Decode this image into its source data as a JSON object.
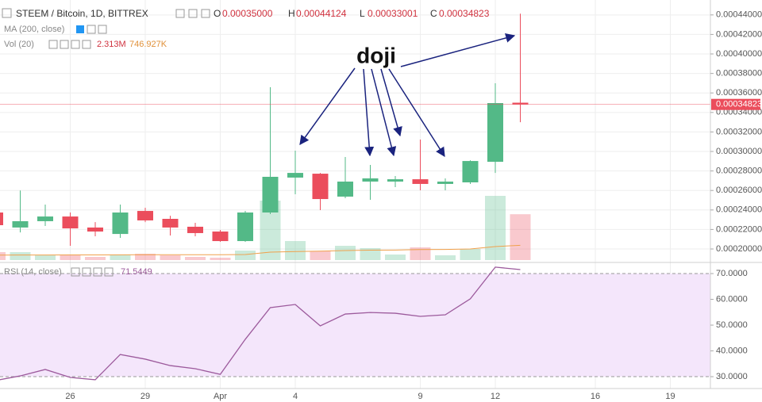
{
  "chart_data": {
    "type": "candlestick",
    "header": {
      "symbol": "STEEM / Bitcoin, 1D, BITTREX",
      "o_tag": "O",
      "o": "0.00035000",
      "h_tag": "H",
      "h": "0.00044124",
      "l_tag": "L",
      "l": "0.00033001",
      "c_tag": "C",
      "c": "0.00034823",
      "ma": "MA (200, close)",
      "vol": "Vol (20)",
      "vol_value": "2.313M",
      "vol_ma_value": "746.927K",
      "rsi": "RSI (14, close)",
      "rsi_value": "71.5449"
    },
    "categories": [
      null,
      null,
      null,
      "26",
      null,
      null,
      "29",
      null,
      null,
      "Apr",
      null,
      null,
      "4",
      null,
      null,
      null,
      null,
      "9",
      null,
      null,
      "12",
      null,
      null,
      null,
      "16",
      null,
      null,
      "19",
      null
    ],
    "open": [
      0.0002374,
      0.000222,
      0.0002285,
      0.0002333,
      0.000222,
      0.0002154,
      0.000239,
      0.0002309,
      0.0002228,
      0.0002179,
      0.0002081,
      0.0002374,
      0.0002732,
      0.0002772,
      0.0002537,
      0.0002691,
      0.0002691,
      0.0002715,
      0.0002667,
      0.0002683,
      0.0002894,
      0.00035,
      null,
      null,
      null,
      null,
      null,
      null,
      null
    ],
    "high": [
      0.0002398,
      0.00026,
      0.0002455,
      0.0002374,
      0.0002276,
      0.0002455,
      0.0002423,
      0.0002341,
      0.0002268,
      0.0002195,
      0.000239,
      0.0003659,
      0.0003008,
      0.000278,
      0.0002943,
      0.0002862,
      0.0002748,
      0.0003122,
      0.0002724,
      0.000291,
      0.0003699,
      0.00044124,
      null,
      null,
      null,
      null,
      null,
      null,
      null
    ],
    "low": [
      0.0002228,
      0.000217,
      0.0002236,
      0.0002033,
      0.000213,
      0.0002114,
      0.0002276,
      0.0002138,
      0.000213,
      0.0002073,
      0.0002073,
      0.0002358,
      0.0002561,
      0.0002398,
      0.000252,
      0.0002504,
      0.0002634,
      0.0002602,
      0.0002602,
      0.0002667,
      0.000278,
      0.00033001,
      null,
      null,
      null,
      null,
      null,
      null,
      null
    ],
    "close": [
      0.0002244,
      0.0002285,
      0.0002333,
      0.0002211,
      0.0002179,
      0.0002374,
      0.0002293,
      0.000222,
      0.0002163,
      0.0002081,
      0.0002374,
      0.000274,
      0.000278,
      0.0002512,
      0.0002691,
      0.0002724,
      0.0002715,
      0.0002667,
      0.0002691,
      0.0002902,
      0.0003496,
      0.00034823,
      null,
      null,
      null,
      null,
      null,
      null,
      null
    ],
    "volume": [
      400000,
      400000,
      240000,
      240000,
      160000,
      280000,
      320000,
      240000,
      160000,
      120000,
      480000,
      3000000,
      960000,
      440000,
      720000,
      600000,
      280000,
      640000,
      240000,
      560000,
      3240000,
      2313000,
      null,
      null,
      null,
      null,
      null,
      null,
      null
    ],
    "volume_ma": [
      250000,
      255000,
      255000,
      260000,
      260000,
      265000,
      270000,
      270000,
      270000,
      270000,
      280000,
      400000,
      430000,
      450000,
      480000,
      500000,
      505000,
      530000,
      535000,
      560000,
      680000,
      746927,
      null,
      null,
      null,
      null,
      null,
      null,
      null
    ],
    "ylim": [
      0.000187,
      0.0004553
    ],
    "yticks": [
      {
        "value": 0.0002,
        "label": "0.00020000"
      },
      {
        "value": 0.00022,
        "label": "0.00022000"
      },
      {
        "value": 0.00024,
        "label": "0.00024000"
      },
      {
        "value": 0.00026,
        "label": "0.00026000"
      },
      {
        "value": 0.00028,
        "label": "0.00028000"
      },
      {
        "value": 0.0003,
        "label": "0.00030000"
      },
      {
        "value": 0.00032,
        "label": "0.00032000"
      },
      {
        "value": 0.00034,
        "label": "0.00034000"
      },
      {
        "value": 0.00036,
        "label": "0.00036000"
      },
      {
        "value": 0.00038,
        "label": "0.00038000"
      },
      {
        "value": 0.0004,
        "label": "0.00040000"
      },
      {
        "value": 0.00042,
        "label": "0.00042000"
      },
      {
        "value": 0.00044,
        "label": "0.00044000"
      }
    ],
    "last_price": {
      "value": 0.00034823,
      "label": "0.00034823"
    },
    "colors": {
      "up": "#53b987",
      "down": "#eb4d5c",
      "volume_ma": "#f0a04b",
      "last_price": "#eb4d5c"
    },
    "grid": true,
    "rsi": {
      "values": [
        28.5,
        30.3,
        32.8,
        29.7,
        28.8,
        38.6,
        36.8,
        34.3,
        33.1,
        30.9,
        44.5,
        56.8,
        58.0,
        49.7,
        54.3,
        54.9,
        54.6,
        53.4,
        54.0,
        60.2,
        72.5,
        71.5449,
        null,
        null,
        null,
        null,
        null,
        null,
        null
      ],
      "ylim": [
        25.4,
        73.7
      ],
      "yticks": [
        {
          "value": 30,
          "label": "30.0000"
        },
        {
          "value": 40,
          "label": "40.0000"
        },
        {
          "value": 50,
          "label": "50.0000"
        },
        {
          "value": 60,
          "label": "60.0000"
        },
        {
          "value": 70,
          "label": "70.0000"
        }
      ],
      "band": [
        30,
        70
      ],
      "color": "#9c5a9c",
      "band_color": "#f4e6fb"
    },
    "annotation": "doji"
  }
}
